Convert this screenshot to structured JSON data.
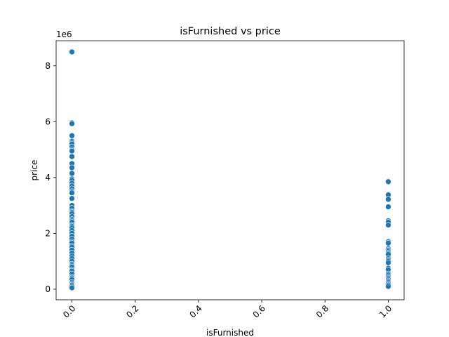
{
  "chart_data": {
    "type": "scatter",
    "title": "isFurnished vs price",
    "xlabel": "isFurnished",
    "ylabel": "price",
    "offset_label": "1e6",
    "xlim": [
      -0.05,
      1.05
    ],
    "ylim": [
      -380000,
      8900000
    ],
    "x_ticks": [
      {
        "value": 0.0,
        "label": "0.0"
      },
      {
        "value": 0.2,
        "label": "0.2"
      },
      {
        "value": 0.4,
        "label": "0.4"
      },
      {
        "value": 0.6,
        "label": "0.6"
      },
      {
        "value": 0.8,
        "label": "0.8"
      },
      {
        "value": 1.0,
        "label": "1.0"
      }
    ],
    "y_ticks": [
      {
        "value": 0,
        "label": "0"
      },
      {
        "value": 2000000,
        "label": "2"
      },
      {
        "value": 4000000,
        "label": "4"
      },
      {
        "value": 6000000,
        "label": "6"
      },
      {
        "value": 8000000,
        "label": "8"
      }
    ],
    "grid": false,
    "legend": "none",
    "marker_color": "#1f77b4",
    "series": [
      {
        "x": 0,
        "values": [
          8500000,
          5960000,
          5930000,
          5500000,
          5300000,
          5250000,
          5200000,
          5100000,
          5000000,
          4950000,
          4750000,
          4500000,
          4350000,
          4150000,
          3950000,
          3900000,
          3800000,
          3700000,
          3600000,
          3500000,
          3450000,
          3250000,
          3000000,
          2900000,
          2800000,
          2750000,
          2700000,
          2600000,
          2500000,
          2450000,
          2400000,
          2300000,
          2250000,
          2200000,
          2100000,
          2000000,
          1900000,
          1800000,
          1700000,
          1650000,
          1550000,
          1500000,
          1400000,
          1300000,
          1200000,
          1100000,
          1000000,
          900000,
          850000,
          800000,
          700000,
          650000,
          550000,
          450000,
          400000,
          350000,
          250000,
          200000,
          150000,
          100000,
          50000
        ]
      },
      {
        "x": 1,
        "values": [
          3850000,
          3380000,
          3220000,
          2950000,
          2450000,
          2400000,
          2300000,
          1700000,
          1650000,
          1450000,
          1400000,
          1350000,
          1300000,
          1250000,
          1100000,
          1050000,
          1000000,
          950000,
          750000,
          700000,
          550000,
          500000,
          450000,
          400000,
          350000,
          300000,
          250000,
          200000,
          150000,
          100000
        ]
      }
    ]
  }
}
